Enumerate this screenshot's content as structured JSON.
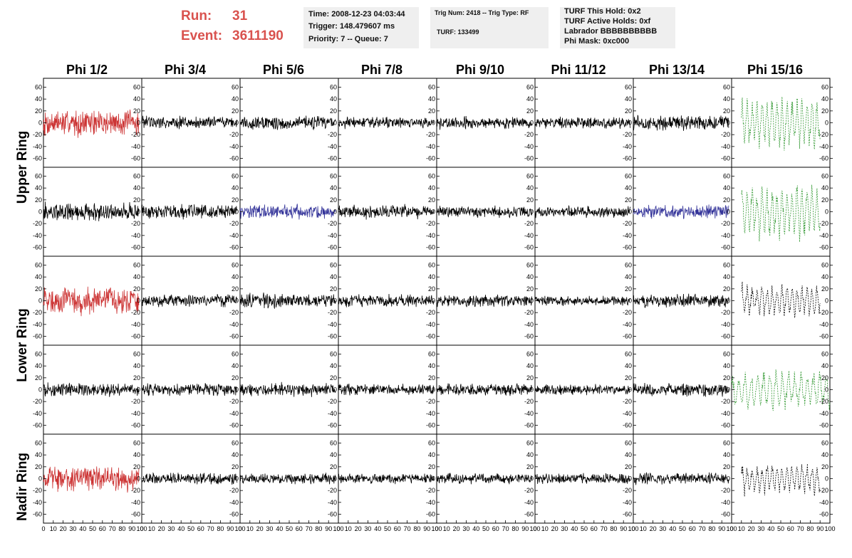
{
  "header": {
    "run_label": "Run:",
    "run_value": "31",
    "event_label": "Event:",
    "event_value": "3611190",
    "info_box_1": {
      "time": "Time: 2008-12-23 04:03:44",
      "trigger": "Trigger: 148.479607 ms",
      "priority": "Priority: 7 -- Queue: 7"
    },
    "info_box_2": {
      "trig": "Trig Num: 2418 -- Trig Type: RF",
      "turf": "TURF: 133499"
    },
    "info_box_3": {
      "hold": "TURF This Hold: 0x2",
      "active": "TURF Active Holds: 0xf",
      "labrador": "Labrador BBBBBBBBBB",
      "mask": "Phi Mask: 0xc000"
    }
  },
  "phi_labels": [
    "Phi 1/2",
    "Phi 3/4",
    "Phi 5/6",
    "Phi 7/8",
    "Phi 9/10",
    "Phi 11/12",
    "Phi 13/14",
    "Phi 15/16"
  ],
  "ring_labels": [
    "Upper Ring",
    "Lower Ring",
    "Nadir Ring"
  ],
  "colors": {
    "red": "#cc3333",
    "blue": "#333399",
    "green": "#339933",
    "black": "#000000",
    "header_text": "#d9524e",
    "info_box_bg": "#efefef"
  },
  "chart_data": {
    "type": "line",
    "rows": 5,
    "cols": 8,
    "x_ticks": [
      0,
      10,
      20,
      30,
      40,
      50,
      60,
      70,
      80,
      90,
      100
    ],
    "x_tick_labels": [
      "0",
      "10",
      "20",
      "30",
      "40",
      "50",
      "60",
      "70",
      "80",
      "90",
      "100"
    ],
    "xlim": [
      0,
      100
    ],
    "y_ticks": [
      -60,
      -40,
      -20,
      0,
      20,
      40,
      60
    ],
    "y_tick_labels": [
      "-60",
      "-40",
      "-20",
      "0",
      "20",
      "40",
      "60"
    ],
    "ylim": [
      -75,
      75
    ],
    "panel_colors": [
      [
        "red",
        "black",
        "black",
        "black",
        "black",
        "black",
        "black",
        "green"
      ],
      [
        "black",
        "black",
        "blue",
        "black",
        "black",
        "black",
        "blue",
        "green"
      ],
      [
        "red",
        "black",
        "black",
        "black",
        "black",
        "black",
        "black",
        "black"
      ],
      [
        "black",
        "black",
        "black",
        "black",
        "black",
        "black",
        "black",
        "green"
      ],
      [
        "red",
        "black",
        "black",
        "black",
        "black",
        "black",
        "black",
        "black"
      ]
    ],
    "panel_dashed": [
      [
        false,
        false,
        false,
        false,
        false,
        false,
        false,
        true
      ],
      [
        false,
        false,
        false,
        false,
        false,
        false,
        false,
        true
      ],
      [
        false,
        false,
        false,
        false,
        false,
        false,
        false,
        true
      ],
      [
        false,
        false,
        false,
        false,
        false,
        false,
        false,
        true
      ],
      [
        false,
        false,
        false,
        false,
        false,
        false,
        false,
        true
      ]
    ],
    "panel_amplitude": [
      [
        26,
        13,
        14,
        11,
        12,
        11,
        15,
        40
      ],
      [
        18,
        14,
        14,
        14,
        11,
        11,
        13,
        42
      ],
      [
        27,
        12,
        14,
        12,
        12,
        10,
        13,
        26
      ],
      [
        13,
        12,
        13,
        11,
        12,
        10,
        13,
        30
      ],
      [
        24,
        11,
        10,
        10,
        10,
        10,
        11,
        24
      ]
    ],
    "trace_extent": [
      [
        [
          0,
          97
        ],
        [
          0,
          97
        ],
        [
          0,
          97
        ],
        [
          0,
          97
        ],
        [
          0,
          97
        ],
        [
          0,
          97
        ],
        [
          0,
          97
        ],
        [
          10,
          90
        ]
      ],
      [
        [
          0,
          97
        ],
        [
          0,
          97
        ],
        [
          0,
          97
        ],
        [
          0,
          97
        ],
        [
          0,
          97
        ],
        [
          0,
          97
        ],
        [
          0,
          97
        ],
        [
          10,
          90
        ]
      ],
      [
        [
          0,
          97
        ],
        [
          0,
          97
        ],
        [
          0,
          97
        ],
        [
          0,
          97
        ],
        [
          0,
          97
        ],
        [
          0,
          97
        ],
        [
          0,
          97
        ],
        [
          10,
          90
        ]
      ],
      [
        [
          0,
          97
        ],
        [
          0,
          97
        ],
        [
          0,
          97
        ],
        [
          0,
          97
        ],
        [
          0,
          97
        ],
        [
          0,
          97
        ],
        [
          0,
          97
        ],
        [
          0,
          100
        ]
      ],
      [
        [
          0,
          97
        ],
        [
          0,
          97
        ],
        [
          0,
          97
        ],
        [
          0,
          97
        ],
        [
          0,
          97
        ],
        [
          0,
          97
        ],
        [
          0,
          97
        ],
        [
          10,
          90
        ]
      ]
    ]
  }
}
